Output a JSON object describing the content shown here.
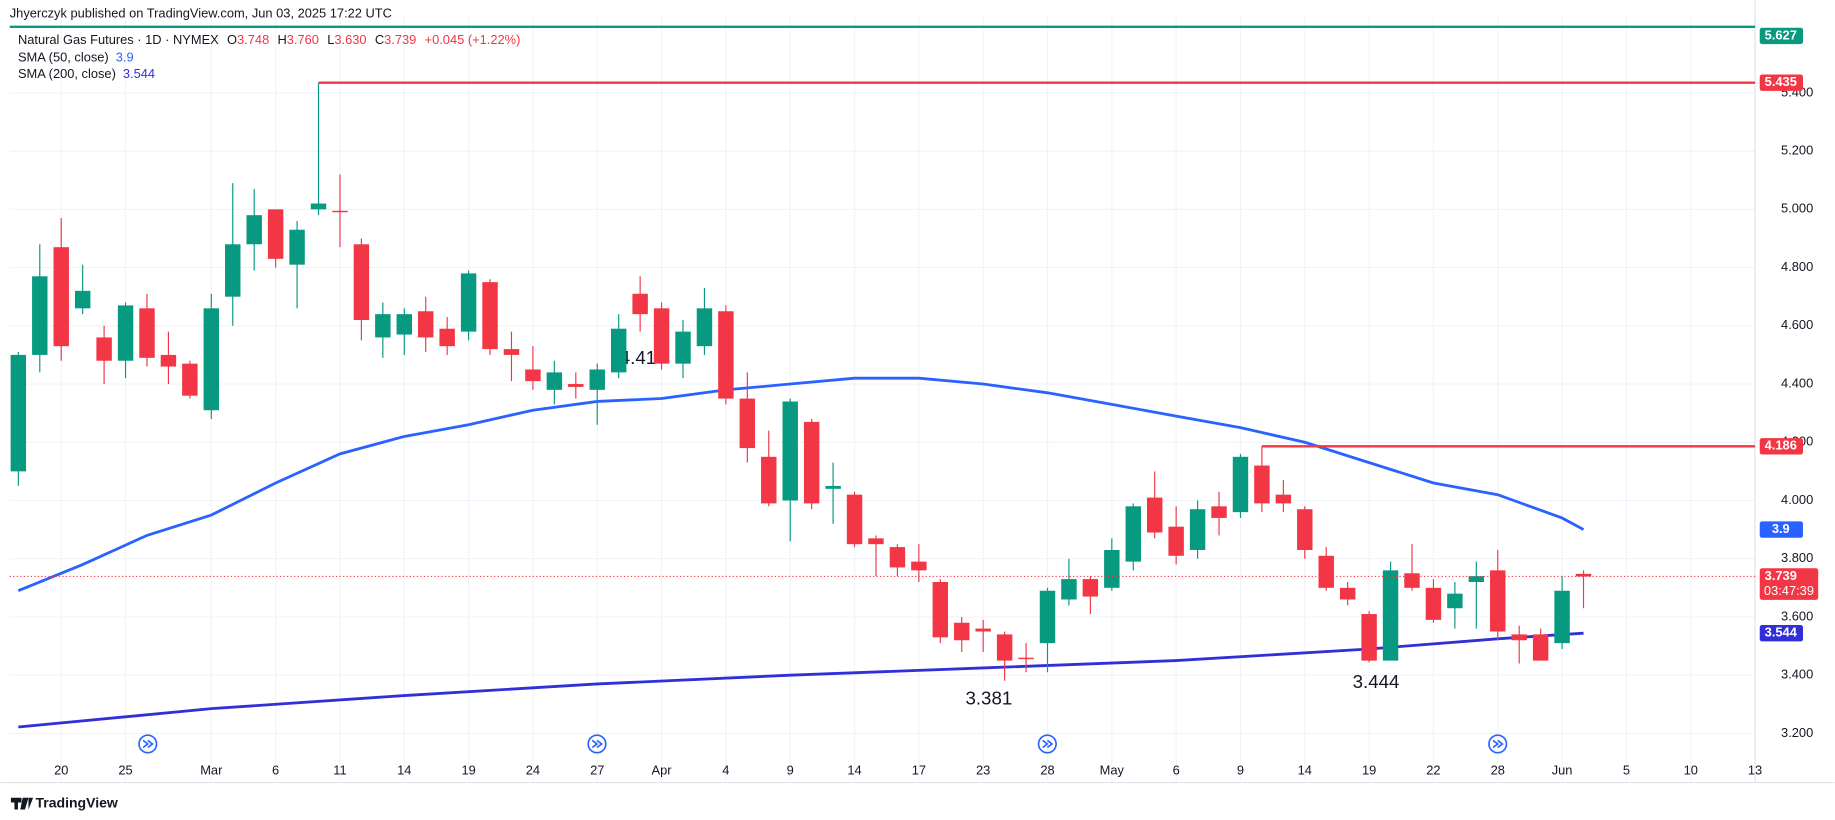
{
  "header": {
    "publisher": "Jhyerczyk published on TradingView.com, Jun 03, 2025 17:22 UTC"
  },
  "legend": {
    "symbol": "Natural Gas Futures · 1D · NYMEX",
    "ohlc": [
      {
        "key": "O",
        "value": "3.748"
      },
      {
        "key": "H",
        "value": "3.760"
      },
      {
        "key": "L",
        "value": "3.630"
      },
      {
        "key": "C",
        "value": "3.739"
      }
    ],
    "change": "+0.045 (+1.22%)"
  },
  "chart_data": {
    "type": "candlestick",
    "x": [
      0,
      1,
      2,
      3,
      4,
      5,
      6,
      7,
      8,
      9,
      10,
      11,
      12,
      13,
      14,
      15,
      16,
      17,
      18,
      19,
      20,
      21,
      22,
      23,
      24,
      25,
      26,
      27,
      28,
      29,
      30,
      31,
      32,
      33,
      34,
      35,
      36,
      37,
      38,
      39,
      40,
      41,
      42,
      43,
      44,
      45,
      46,
      47,
      48,
      49,
      50,
      51,
      52,
      53,
      54,
      55,
      56,
      57,
      58,
      59,
      60,
      61,
      62,
      63,
      64,
      65,
      66,
      67,
      68,
      69,
      70,
      71,
      72,
      73
    ],
    "open": [
      4.1,
      4.5,
      4.87,
      4.66,
      4.56,
      4.48,
      4.66,
      4.5,
      4.47,
      4.31,
      4.7,
      4.88,
      5.0,
      4.81,
      5.0,
      4.995,
      4.88,
      4.56,
      4.57,
      4.65,
      4.59,
      4.58,
      4.75,
      4.52,
      4.45,
      4.38,
      4.4,
      4.38,
      4.44,
      4.71,
      4.66,
      4.47,
      4.53,
      4.65,
      4.35,
      4.15,
      4.0,
      4.27,
      4.04,
      4.02,
      3.87,
      3.84,
      3.79,
      3.72,
      3.58,
      3.56,
      3.54,
      3.46,
      3.51,
      3.66,
      3.73,
      3.7,
      3.79,
      4.01,
      3.91,
      3.83,
      3.98,
      3.96,
      4.12,
      4.02,
      3.97,
      3.81,
      3.7,
      3.61,
      3.45,
      3.75,
      3.7,
      3.63,
      3.72,
      3.76,
      3.54,
      3.54,
      3.51,
      3.748
    ],
    "high": [
      4.51,
      4.88,
      4.97,
      4.81,
      4.6,
      4.68,
      4.71,
      4.58,
      4.48,
      4.71,
      5.09,
      5.07,
      5.0,
      4.96,
      5.435,
      5.12,
      4.9,
      4.68,
      4.66,
      4.7,
      4.63,
      4.79,
      4.76,
      4.58,
      4.53,
      4.48,
      4.44,
      4.47,
      4.64,
      4.77,
      4.68,
      4.62,
      4.73,
      4.67,
      4.44,
      4.24,
      4.35,
      4.28,
      4.13,
      4.03,
      3.88,
      3.85,
      3.85,
      3.73,
      3.6,
      3.59,
      3.55,
      3.51,
      3.7,
      3.8,
      3.74,
      3.87,
      3.99,
      4.1,
      3.98,
      4.0,
      4.03,
      4.16,
      4.186,
      4.07,
      3.98,
      3.84,
      3.72,
      3.62,
      3.79,
      3.85,
      3.73,
      3.72,
      3.79,
      3.83,
      3.57,
      3.56,
      3.74,
      3.76
    ],
    "low": [
      4.05,
      4.44,
      4.48,
      4.64,
      4.4,
      4.42,
      4.46,
      4.4,
      4.35,
      4.28,
      4.6,
      4.79,
      4.8,
      4.66,
      4.98,
      4.87,
      4.55,
      4.49,
      4.5,
      4.51,
      4.5,
      4.55,
      4.5,
      4.41,
      4.38,
      4.33,
      4.35,
      4.26,
      4.42,
      4.58,
      4.45,
      4.42,
      4.5,
      4.33,
      4.13,
      3.98,
      3.86,
      3.97,
      3.92,
      3.84,
      3.74,
      3.74,
      3.72,
      3.51,
      3.48,
      3.48,
      3.381,
      3.41,
      3.41,
      3.64,
      3.61,
      3.69,
      3.76,
      3.87,
      3.78,
      3.8,
      3.88,
      3.94,
      3.96,
      3.96,
      3.8,
      3.69,
      3.64,
      3.444,
      3.45,
      3.69,
      3.58,
      3.56,
      3.56,
      3.52,
      3.44,
      3.45,
      3.49,
      3.63
    ],
    "close": [
      4.5,
      4.77,
      4.53,
      4.72,
      4.48,
      4.67,
      4.49,
      4.46,
      4.36,
      4.66,
      4.88,
      4.98,
      4.83,
      4.93,
      5.02,
      4.99,
      4.62,
      4.64,
      4.64,
      4.56,
      4.53,
      4.78,
      4.52,
      4.5,
      4.41,
      4.44,
      4.39,
      4.45,
      4.59,
      4.64,
      4.47,
      4.58,
      4.66,
      4.35,
      4.18,
      3.99,
      4.34,
      3.99,
      4.05,
      3.85,
      3.85,
      3.77,
      3.76,
      3.53,
      3.52,
      3.55,
      3.45,
      3.455,
      3.69,
      3.73,
      3.67,
      3.83,
      3.98,
      3.89,
      3.81,
      3.97,
      3.94,
      4.15,
      3.99,
      3.99,
      3.83,
      3.7,
      3.66,
      3.45,
      3.76,
      3.7,
      3.59,
      3.68,
      3.74,
      3.55,
      3.52,
      3.45,
      3.69,
      3.739
    ],
    "up_color": "#089981",
    "down_color": "#f23645",
    "xlim": [
      -0.4,
      81
    ],
    "xticks": [
      {
        "value": 2,
        "label": "20"
      },
      {
        "value": 5,
        "label": "25"
      },
      {
        "value": 9,
        "label": "Mar"
      },
      {
        "value": 12,
        "label": "6"
      },
      {
        "value": 15,
        "label": "11"
      },
      {
        "value": 18,
        "label": "14"
      },
      {
        "value": 21,
        "label": "19"
      },
      {
        "value": 24,
        "label": "24"
      },
      {
        "value": 27,
        "label": "27"
      },
      {
        "value": 30,
        "label": "Apr"
      },
      {
        "value": 33,
        "label": "4"
      },
      {
        "value": 36,
        "label": "9"
      },
      {
        "value": 39,
        "label": "14"
      },
      {
        "value": 42,
        "label": "17"
      },
      {
        "value": 45,
        "label": "23"
      },
      {
        "value": 48,
        "label": "28"
      },
      {
        "value": 51,
        "label": "May"
      },
      {
        "value": 54,
        "label": "6"
      },
      {
        "value": 57,
        "label": "9"
      },
      {
        "value": 60,
        "label": "14"
      },
      {
        "value": 63,
        "label": "19"
      },
      {
        "value": 66,
        "label": "22"
      },
      {
        "value": 69,
        "label": "28"
      },
      {
        "value": 72,
        "label": "Jun"
      },
      {
        "value": 75,
        "label": "5"
      },
      {
        "value": 78,
        "label": "10"
      },
      {
        "value": 81,
        "label": "13"
      }
    ],
    "ylim": [
      3.05,
      5.66
    ],
    "yticks": [
      {
        "value": 3.2,
        "label": "3.200"
      },
      {
        "value": 3.4,
        "label": "3.400"
      },
      {
        "value": 3.6,
        "label": "3.600"
      },
      {
        "value": 3.8,
        "label": "3.800"
      },
      {
        "value": 4.0,
        "label": "4.000"
      },
      {
        "value": 4.2,
        "label": "4.200"
      },
      {
        "value": 4.4,
        "label": "4.400"
      },
      {
        "value": 4.6,
        "label": "4.600"
      },
      {
        "value": 4.8,
        "label": "4.800"
      },
      {
        "value": 5.0,
        "label": "5.000"
      },
      {
        "value": 5.2,
        "label": "5.200"
      },
      {
        "value": 5.4,
        "label": "5.400"
      }
    ],
    "grid": true,
    "series": [
      {
        "name": "SMA (50, close)",
        "color": "#2962ff",
        "x": [
          0,
          3,
          6,
          9,
          12,
          15,
          18,
          21,
          24,
          27,
          30,
          33,
          36,
          39,
          42,
          45,
          48,
          51,
          54,
          57,
          60,
          63,
          66,
          69,
          72,
          73
        ],
        "values": [
          3.69,
          3.78,
          3.88,
          3.95,
          4.06,
          4.16,
          4.22,
          4.26,
          4.31,
          4.34,
          4.35,
          4.38,
          4.4,
          4.42,
          4.42,
          4.4,
          4.37,
          4.33,
          4.29,
          4.25,
          4.2,
          4.13,
          4.06,
          4.02,
          3.94,
          3.9
        ]
      },
      {
        "name": "SMA (200, close)",
        "color": "#3030d8",
        "x": [
          0,
          9,
          18,
          27,
          36,
          45,
          54,
          63,
          69,
          73
        ],
        "values": [
          3.222,
          3.285,
          3.33,
          3.37,
          3.4,
          3.425,
          3.45,
          3.49,
          3.525,
          3.544
        ]
      }
    ],
    "levels": [
      {
        "value": 5.627,
        "color": "#089981"
      },
      {
        "value": 5.435,
        "color": "#f23645",
        "from": 14
      },
      {
        "value": 4.186,
        "color": "#f23645",
        "from": 58
      }
    ],
    "last_price": {
      "value": 3.739,
      "countdown": "03:47:39",
      "color": "#f23645"
    },
    "annotations": [
      "4.41",
      "3.381",
      "3.444"
    ]
  },
  "footer": {
    "brand": "TradingView"
  }
}
